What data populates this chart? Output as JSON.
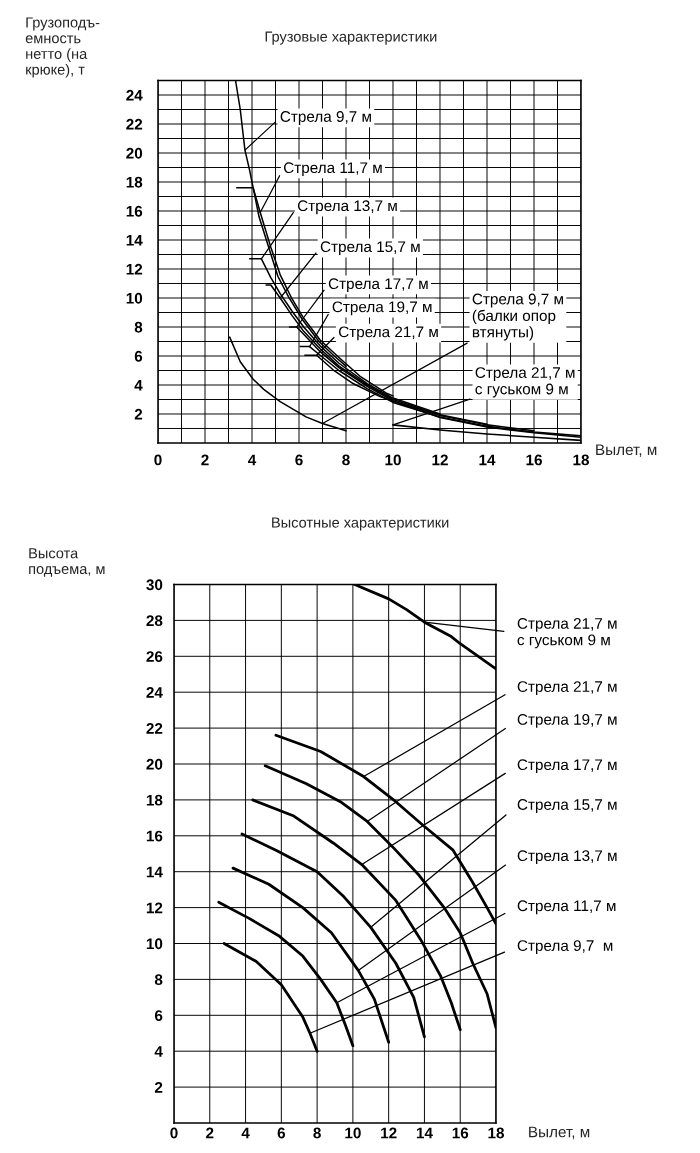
{
  "chart_data": [
    {
      "type": "line",
      "title": "Грузовые характеристики",
      "xlabel": "Вылет, м",
      "ylabel": "Грузоподъ-\nемность\nнетто (на\nкрюке), т",
      "xlim": [
        0,
        18
      ],
      "ylim": [
        0,
        25
      ],
      "xticks": [
        0,
        {
          "value": 1,
          "label": null
        },
        2,
        {
          "value": 3,
          "label": null
        },
        4,
        {
          "value": 5,
          "label": null
        },
        6,
        {
          "value": 7,
          "label": null
        },
        8,
        {
          "value": 9,
          "label": null
        },
        10,
        {
          "value": 11,
          "label": null
        },
        12,
        {
          "value": 13,
          "label": null
        },
        14,
        {
          "value": 15,
          "label": null
        },
        16,
        {
          "value": 17,
          "label": null
        },
        18
      ],
      "yticks": [
        {
          "value": 1,
          "label": null
        },
        2,
        {
          "value": 3,
          "label": null
        },
        4,
        {
          "value": 5,
          "label": null
        },
        6,
        {
          "value": 7,
          "label": null
        },
        8,
        {
          "value": 9,
          "label": null
        },
        10,
        {
          "value": 11,
          "label": null
        },
        12,
        {
          "value": 13,
          "label": null
        },
        14,
        {
          "value": 15,
          "label": null
        },
        16,
        {
          "value": 17,
          "label": null
        },
        18,
        {
          "value": 19,
          "label": null
        },
        20,
        {
          "value": 21,
          "label": null
        },
        22,
        {
          "value": 23,
          "label": null
        },
        24
      ],
      "grid": true,
      "legend": false,
      "series": [
        {
          "name": "Стрела 9,7 м",
          "color": "#000000",
          "x": [
            3.3,
            3.5,
            3.7,
            3.9,
            4.05,
            4.3,
            4.75,
            5.1,
            5.55,
            6.15,
            6.85,
            7.5,
            8.0
          ],
          "values": [
            25.0,
            23.0,
            20.2,
            18.8,
            17.6,
            15.6,
            13.3,
            11.5,
            10.1,
            8.5,
            7.0,
            6.0,
            5.3
          ]
        },
        {
          "name": "Стрела 11,7 м",
          "color": "#000000",
          "x": [
            3.35,
            4.05,
            4.35,
            4.8,
            5.2,
            5.7,
            6.2,
            6.9,
            7.7,
            8.6,
            9.7,
            10.0
          ],
          "values": [
            17.6,
            17.6,
            15.9,
            13.5,
            11.6,
            9.95,
            8.6,
            7.1,
            5.9,
            4.6,
            3.45,
            3.25
          ]
        },
        {
          "name": "Стрела 13,7 м",
          "color": "#000000",
          "x": [
            3.9,
            4.4,
            4.8,
            5.2,
            5.7,
            6.2,
            6.9,
            7.7,
            8.9,
            10.0,
            12.0
          ],
          "values": [
            12.7,
            12.7,
            11.4,
            10.3,
            9.1,
            8.0,
            6.7,
            5.5,
            4.1,
            3.1,
            2.0
          ]
        },
        {
          "name": "Стрела 15,7 м",
          "color": "#000000",
          "x": [
            4.6,
            4.8,
            5.2,
            5.7,
            6.2,
            6.9,
            7.7,
            8.9,
            10.0,
            12.0,
            14.0
          ],
          "values": [
            10.9,
            10.9,
            10.0,
            8.8,
            7.7,
            6.5,
            5.3,
            4.0,
            3.0,
            1.95,
            1.3
          ]
        },
        {
          "name": "Стрела 17,7 м",
          "color": "#000000",
          "x": [
            5.6,
            5.9,
            6.2,
            6.9,
            7.7,
            8.9,
            10.0,
            12.0,
            14.0,
            16.0
          ],
          "values": [
            8.0,
            8.0,
            7.5,
            6.3,
            5.2,
            3.9,
            2.9,
            1.9,
            1.25,
            0.85
          ]
        },
        {
          "name": "Стрела 19,7 м",
          "color": "#000000",
          "x": [
            6.05,
            6.45,
            6.9,
            7.7,
            8.9,
            10.0,
            12.0,
            14.0,
            16.0,
            18.0
          ],
          "values": [
            6.65,
            6.65,
            6.05,
            5.0,
            3.75,
            2.8,
            1.8,
            1.15,
            0.75,
            0.5
          ]
        },
        {
          "name": "Стрела 21,7 м",
          "color": "#000000",
          "x": [
            6.25,
            6.75,
            7.45,
            8.3,
            9.45,
            10.7,
            12.0,
            14.0,
            16.0,
            18.0
          ],
          "values": [
            6.05,
            6.05,
            5.05,
            4.1,
            3.2,
            2.5,
            1.75,
            1.1,
            0.7,
            0.4
          ]
        },
        {
          "name": "Стрела 9,7 м\n(балки опор\nвтянуты)",
          "color": "#000000",
          "x": [
            3.05,
            3.5,
            4.05,
            4.5,
            5.2,
            6.3,
            7.0,
            8.0
          ],
          "values": [
            7.3,
            5.6,
            4.4,
            3.7,
            2.85,
            1.8,
            1.35,
            0.85
          ]
        },
        {
          "name": "Стрела 21,7 м\nс гуськом 9 м",
          "color": "#000000",
          "x": [
            10.0,
            12.0,
            14.0,
            16.0,
            18.0
          ],
          "values": [
            1.25,
            0.9,
            0.62,
            0.4,
            0.18
          ]
        }
      ]
    },
    {
      "type": "line",
      "title": "Высотные характеристики",
      "xlabel": "Вылет, м",
      "ylabel": "Высота\nподъема, м",
      "xlim": [
        0,
        18
      ],
      "ylim": [
        0,
        30
      ],
      "xticks": [
        0,
        2,
        4,
        6,
        8,
        10,
        12,
        14,
        16,
        18
      ],
      "yticks": [
        2,
        4,
        6,
        8,
        10,
        12,
        14,
        16,
        18,
        20,
        22,
        24,
        26,
        28,
        30
      ],
      "grid": true,
      "legend": false,
      "series": [
        {
          "name": "Стрела 21,7 м\nс гуськом 9 м",
          "color": "#000000",
          "x": [
            10.1,
            12.0,
            13.0,
            14.0,
            15.5,
            16.0,
            18.0
          ],
          "values": [
            30.0,
            29.2,
            28.6,
            27.9,
            27.1,
            26.7,
            25.3
          ]
        },
        {
          "name": "Стрела 21,7 м",
          "color": "#000000",
          "x": [
            5.7,
            8.2,
            10.6,
            12.4,
            13.9,
            15.6,
            16.7,
            17.5,
            18.0
          ],
          "values": [
            21.6,
            20.7,
            19.3,
            17.9,
            16.6,
            15.2,
            13.4,
            12.0,
            11.1
          ]
        },
        {
          "name": "Стрела 19,7 м",
          "color": "#000000",
          "x": [
            5.1,
            7.4,
            9.3,
            10.8,
            12.3,
            13.7,
            15.1,
            16.0,
            16.7,
            17.5,
            18.0
          ],
          "values": [
            19.9,
            18.9,
            17.9,
            16.8,
            15.3,
            13.8,
            12.0,
            10.6,
            8.9,
            7.2,
            5.3
          ]
        },
        {
          "name": "Стрела 17,7 м",
          "color": "#000000",
          "x": [
            4.4,
            6.7,
            8.9,
            10.5,
            12.4,
            13.8,
            14.9,
            15.5,
            16.0
          ],
          "values": [
            18.0,
            17.1,
            15.6,
            14.4,
            12.4,
            10.2,
            8.2,
            6.7,
            5.2
          ]
        },
        {
          "name": "Стрела 15,7 м",
          "color": "#000000",
          "x": [
            3.8,
            5.7,
            8.0,
            9.5,
            11.0,
            12.4,
            13.4,
            14.0
          ],
          "values": [
            16.1,
            15.2,
            14.0,
            12.6,
            10.9,
            8.9,
            7.0,
            4.8
          ]
        },
        {
          "name": "Стрела 13,7 м",
          "color": "#000000",
          "x": [
            3.3,
            5.3,
            7.2,
            8.8,
            10.3,
            11.2,
            12.0
          ],
          "values": [
            14.2,
            13.3,
            12.0,
            10.6,
            8.5,
            6.9,
            4.5
          ]
        },
        {
          "name": "Стрела 11,7 м",
          "color": "#000000",
          "x": [
            2.5,
            4.2,
            5.9,
            7.2,
            8.2,
            9.1,
            9.6,
            10.0
          ],
          "values": [
            12.3,
            11.4,
            10.4,
            9.3,
            8.0,
            6.7,
            5.4,
            4.3
          ]
        },
        {
          "name": "Стрела 9,7  м",
          "color": "#000000",
          "x": [
            2.8,
            4.6,
            6.0,
            7.2,
            7.6,
            8.0
          ],
          "values": [
            10.0,
            9.0,
            7.7,
            5.9,
            5.0,
            4.0
          ]
        }
      ]
    }
  ]
}
